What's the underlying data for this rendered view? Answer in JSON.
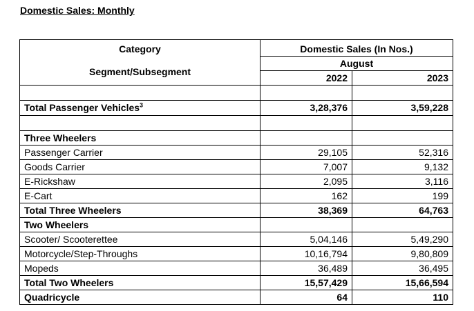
{
  "heading": "Domestic Sales: Monthly",
  "header": {
    "category": "Category",
    "segment": "Segment/Subsegment",
    "sales_title": "Domestic Sales (In Nos.)",
    "month": "August",
    "year1": "2022",
    "year2": "2023"
  },
  "passenger": {
    "label": "Total Passenger Vehicles",
    "sup": "3",
    "v2022": "3,28,376",
    "v2023": "3,59,228"
  },
  "three_wheelers": {
    "title": "Three Wheelers",
    "rows": [
      {
        "label": "Passenger Carrier",
        "v2022": "29,105",
        "v2023": "52,316"
      },
      {
        "label": "Goods Carrier",
        "v2022": "7,007",
        "v2023": "9,132"
      },
      {
        "label": "E-Rickshaw",
        "v2022": "2,095",
        "v2023": "3,116"
      },
      {
        "label": "E-Cart",
        "v2022": "162",
        "v2023": "199"
      }
    ],
    "total": {
      "label": "Total Three Wheelers",
      "v2022": "38,369",
      "v2023": "64,763"
    }
  },
  "two_wheelers": {
    "title": "Two Wheelers",
    "rows": [
      {
        "label": "Scooter/ Scooterettee",
        "v2022": "5,04,146",
        "v2023": "5,49,290"
      },
      {
        "label": "Motorcycle/Step-Throughs",
        "v2022": "10,16,794",
        "v2023": "9,80,809"
      },
      {
        "label": "Mopeds",
        "v2022": "36,489",
        "v2023": "36,495"
      }
    ],
    "total": {
      "label": "Total Two Wheelers",
      "v2022": "15,57,429",
      "v2023": "15,66,594"
    }
  },
  "quadricycle": {
    "label": "Quadricycle",
    "v2022": "64",
    "v2023": "110"
  }
}
